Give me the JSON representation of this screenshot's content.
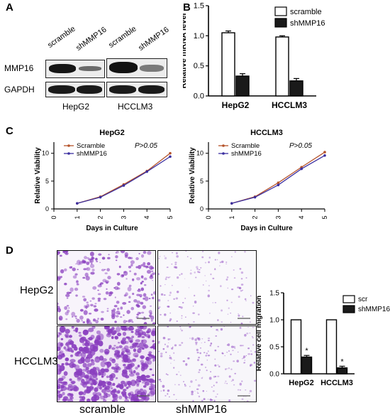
{
  "panels": {
    "A": {
      "letter": "A",
      "lanes": [
        "scramble",
        "shMMP16",
        "scramble",
        "shMMP16"
      ],
      "rows": [
        "MMP16",
        "GAPDH"
      ],
      "cell_lines": [
        "HepG2",
        "HCCLM3"
      ]
    },
    "B": {
      "letter": "B"
    },
    "C": {
      "letter": "C"
    },
    "D": {
      "letter": "D",
      "row_labels": [
        "HepG2",
        "HCCLM3"
      ],
      "col_labels": [
        "scramble",
        "shMMP16"
      ]
    }
  },
  "colors": {
    "scramble_line": "#b5532a",
    "shmmp16_line": "#3b2fa0",
    "stain": "#8a3fbf",
    "bar_dark": "#1a1a1a"
  },
  "chart_data": [
    {
      "id": "B",
      "type": "bar",
      "categories": [
        "HepG2",
        "HCCLM3"
      ],
      "series": [
        {
          "name": "scramble",
          "values": [
            1.05,
            0.98
          ],
          "errors": [
            0.03,
            0.02
          ]
        },
        {
          "name": "shMMP16",
          "values": [
            0.33,
            0.25
          ],
          "errors": [
            0.04,
            0.04
          ]
        }
      ],
      "ylabel": "Relative mRNA level",
      "yticks": [
        "0.0",
        "0.5",
        "1.0",
        "1.5"
      ],
      "ylim": [
        0,
        1.5
      ],
      "legend": "top-right"
    },
    {
      "id": "C1",
      "type": "line",
      "title": "HepG2",
      "annotation": "P>0.05",
      "x": [
        1,
        2,
        3,
        4,
        5
      ],
      "series": [
        {
          "name": "Scramble",
          "values": [
            1.0,
            2.2,
            4.4,
            6.8,
            10.0
          ]
        },
        {
          "name": "shMMP16",
          "values": [
            1.0,
            2.1,
            4.2,
            6.7,
            9.4
          ]
        }
      ],
      "xlabel": "Days in Culture",
      "ylabel": "Relative Viability",
      "xticks": [
        "0",
        "1",
        "2",
        "3",
        "4",
        "5"
      ],
      "yticks": [
        "0",
        "5",
        "10"
      ],
      "xlim": [
        0,
        5
      ],
      "ylim": [
        0,
        12
      ]
    },
    {
      "id": "C2",
      "type": "line",
      "title": "HCCLM3",
      "annotation": "P>0.05",
      "x": [
        1,
        2,
        3,
        4,
        5
      ],
      "series": [
        {
          "name": "Scramble",
          "values": [
            1.0,
            2.2,
            4.7,
            7.5,
            10.2
          ]
        },
        {
          "name": "shMMP16",
          "values": [
            1.0,
            2.1,
            4.3,
            7.2,
            9.6
          ]
        }
      ],
      "xlabel": "Days in Culture",
      "ylabel": "Relative Viability",
      "xticks": [
        "0",
        "1",
        "2",
        "3",
        "4",
        "5"
      ],
      "yticks": [
        "0",
        "5",
        "10"
      ],
      "xlim": [
        0,
        5
      ],
      "ylim": [
        0,
        12
      ]
    },
    {
      "id": "D",
      "type": "bar",
      "categories": [
        "HepG2",
        "HCCLM3"
      ],
      "series": [
        {
          "name": "scr",
          "values": [
            1.0,
            1.0
          ],
          "errors": [
            0,
            0
          ]
        },
        {
          "name": "shMMP16",
          "values": [
            0.31,
            0.11
          ],
          "errors": [
            0.03,
            0.03
          ]
        }
      ],
      "annotations": [
        "*",
        "*"
      ],
      "ylabel": "Relative cell migration",
      "yticks": [
        "0.0",
        "0.5",
        "1.0",
        "1.5"
      ],
      "ylim": [
        0,
        1.5
      ],
      "legend": "top-right"
    }
  ]
}
